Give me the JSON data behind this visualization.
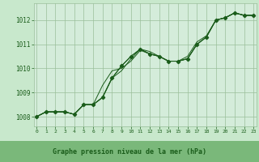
{
  "title": "Graphe pression niveau de la mer (hPa)",
  "bg_color": "#c8e8cc",
  "plot_bg_color": "#d4ecda",
  "line_color": "#1a5c1a",
  "grid_color": "#9abf9a",
  "text_color": "#1a5c1a",
  "bottom_bg": "#7ab87a",
  "ylim": [
    1007.6,
    1012.7
  ],
  "xlim": [
    -0.3,
    23.3
  ],
  "yticks": [
    1008,
    1009,
    1010,
    1011,
    1012
  ],
  "xticks": [
    0,
    1,
    2,
    3,
    4,
    5,
    6,
    7,
    8,
    9,
    10,
    11,
    12,
    13,
    14,
    15,
    16,
    17,
    18,
    19,
    20,
    21,
    22,
    23
  ],
  "series1": [
    1008.0,
    1008.2,
    1008.2,
    1008.2,
    1008.1,
    1008.5,
    1008.5,
    1009.3,
    1009.9,
    1010.0,
    1010.3,
    1010.75,
    1010.6,
    1010.5,
    1010.3,
    1010.3,
    1010.5,
    1011.1,
    1011.35,
    1012.0,
    1012.1,
    1012.3,
    1012.2,
    1012.2
  ],
  "series2": [
    1008.0,
    1008.2,
    1008.2,
    1008.2,
    1008.1,
    1008.5,
    1008.5,
    1008.8,
    1009.6,
    1009.9,
    1010.4,
    1010.8,
    1010.7,
    1010.5,
    1010.3,
    1010.3,
    1010.4,
    1011.0,
    1011.3,
    1012.0,
    1012.1,
    1012.3,
    1012.2,
    1012.2
  ],
  "series3": [
    1008.0,
    1008.2,
    1008.2,
    1008.2,
    1008.1,
    1008.5,
    1008.5,
    1008.8,
    1009.6,
    1010.1,
    1010.5,
    1010.8,
    1010.6,
    1010.5,
    1010.3,
    1010.3,
    1010.4,
    1011.0,
    1011.3,
    1012.0,
    1012.1,
    1012.3,
    1012.2,
    1012.2
  ],
  "marker_data": [
    1008.0,
    1008.2,
    1008.2,
    1008.2,
    1008.1,
    1008.5,
    1008.5,
    1008.8,
    1009.6,
    1010.1,
    1010.5,
    1010.8,
    1010.6,
    1010.5,
    1010.3,
    1010.3,
    1010.4,
    1011.0,
    1011.3,
    1012.0,
    1012.1,
    1012.3,
    1012.2,
    1012.2
  ]
}
